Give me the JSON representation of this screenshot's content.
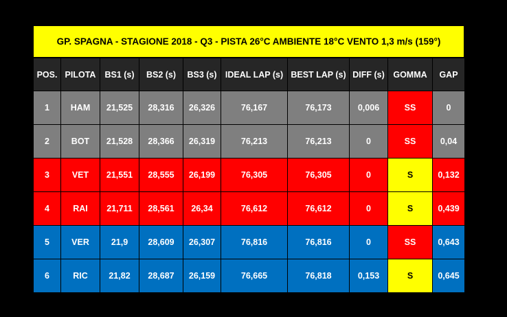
{
  "title": "GP. SPAGNA - STAGIONE 2018 - Q3  - PISTA 26°C AMBIENTE 18°C VENTO 1,3 m/s (159°)",
  "headers": [
    "POS.",
    "PILOTA",
    "BS1 (s)",
    "BS2 (s)",
    "BS3 (s)",
    "IDEAL LAP (s)",
    "BEST LAP (s)",
    "DIFF (s)",
    "GOMMA",
    "GAP"
  ],
  "rows": [
    {
      "pos": "1",
      "driver": "HAM",
      "bs1": "21,525",
      "bs2": "28,316",
      "bs3": "26,326",
      "ideal": "76,167",
      "best": "76,173",
      "diff": "0,006",
      "tyre": "SS",
      "gap": "0"
    },
    {
      "pos": "2",
      "driver": "BOT",
      "bs1": "21,528",
      "bs2": "28,366",
      "bs3": "26,319",
      "ideal": "76,213",
      "best": "76,213",
      "diff": "0",
      "tyre": "SS",
      "gap": "0,04"
    },
    {
      "pos": "3",
      "driver": "VET",
      "bs1": "21,551",
      "bs2": "28,555",
      "bs3": "26,199",
      "ideal": "76,305",
      "best": "76,305",
      "diff": "0",
      "tyre": "S",
      "gap": "0,132"
    },
    {
      "pos": "4",
      "driver": "RAI",
      "bs1": "21,711",
      "bs2": "28,561",
      "bs3": "26,34",
      "ideal": "76,612",
      "best": "76,612",
      "diff": "0",
      "tyre": "S",
      "gap": "0,439"
    },
    {
      "pos": "5",
      "driver": "VER",
      "bs1": "21,9",
      "bs2": "28,609",
      "bs3": "26,307",
      "ideal": "76,816",
      "best": "76,816",
      "diff": "0",
      "tyre": "SS",
      "gap": "0,643"
    },
    {
      "pos": "6",
      "driver": "RIC",
      "bs1": "21,82",
      "bs2": "28,687",
      "bs3": "26,159",
      "ideal": "76,665",
      "best": "76,818",
      "diff": "0,153",
      "tyre": "S",
      "gap": "0,645"
    }
  ],
  "colors": {
    "title_bg": "#ffff00",
    "header_bg": "#262626",
    "mercedes_grey": "#7f7f7f",
    "ferrari_red": "#ff0000",
    "redbull_blue": "#0070c0",
    "tyre_ss": "#ff0000",
    "tyre_s": "#ffff00"
  }
}
